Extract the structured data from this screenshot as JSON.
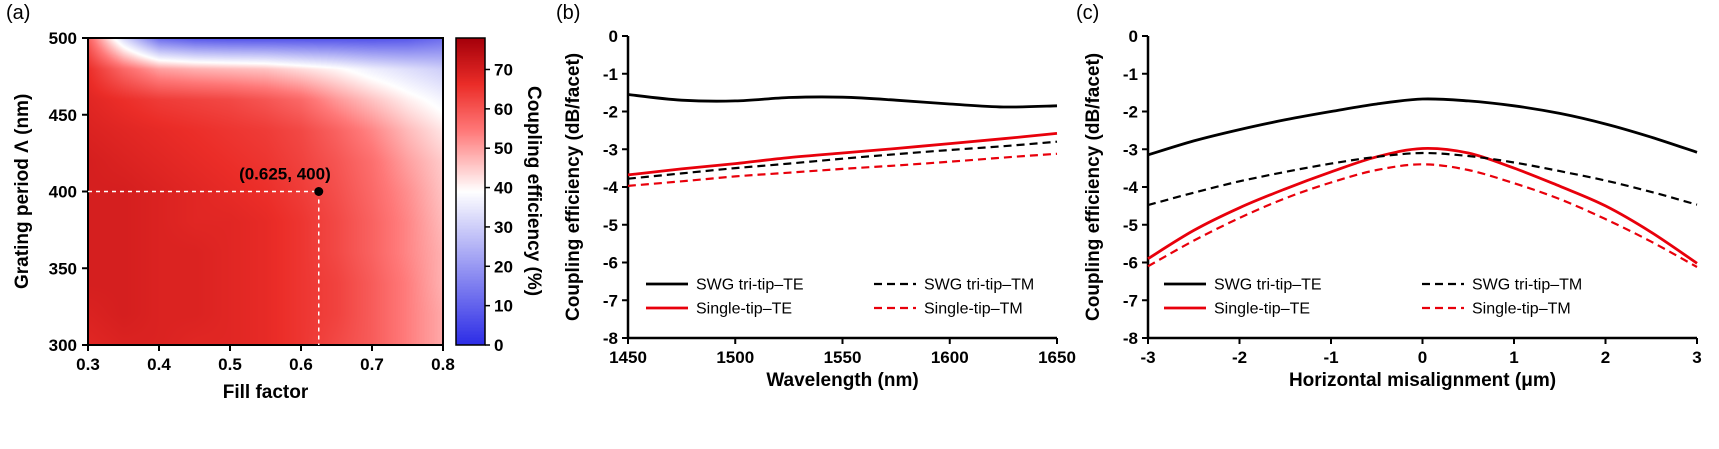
{
  "figure": {
    "panel_labels": {
      "a": "(a)",
      "b": "(b)",
      "c": "(c)"
    },
    "background": "#ffffff",
    "text_color": "#000000",
    "accent_red": "#e8000b"
  },
  "chart_data": [
    {
      "id": "a",
      "type": "heatmap",
      "xlabel": "Fill factor",
      "ylabel": "Grating period Λ (nm)",
      "colorbar_label": "Coupling efficiency (%)",
      "xlim": [
        0.3,
        0.8
      ],
      "ylim": [
        300,
        500
      ],
      "xticks": [
        0.3,
        0.4,
        0.5,
        0.6,
        0.7,
        0.8
      ],
      "yticks": [
        300,
        350,
        400,
        450,
        500
      ],
      "fill_factors": [
        0.3,
        0.35,
        0.4,
        0.45,
        0.5,
        0.55,
        0.6,
        0.65,
        0.7,
        0.75,
        0.8
      ],
      "grating_periods_top_to_bottom": [
        500,
        480,
        460,
        440,
        420,
        400,
        380,
        360,
        340,
        320,
        300
      ],
      "values_percent": [
        [
          58,
          32,
          12,
          8,
          7,
          7,
          7,
          7,
          7,
          8,
          12
        ],
        [
          66,
          57,
          50,
          48,
          47,
          46,
          43,
          40,
          36,
          33,
          30
        ],
        [
          68,
          66,
          64,
          63,
          62,
          60,
          57,
          51,
          46,
          41,
          37
        ],
        [
          69,
          68,
          67,
          66,
          65,
          64,
          62,
          58,
          53,
          47,
          42
        ],
        [
          70,
          69,
          68,
          67,
          66,
          65,
          63,
          60,
          56,
          50,
          45
        ],
        [
          70,
          70,
          69,
          68,
          67,
          66,
          64,
          61,
          57,
          52,
          46
        ],
        [
          70,
          70,
          69,
          68,
          68,
          67,
          65,
          62,
          58,
          53,
          47
        ],
        [
          70,
          70,
          69,
          69,
          68,
          67,
          65,
          62,
          58,
          53,
          48
        ],
        [
          70,
          70,
          69,
          69,
          68,
          67,
          65,
          63,
          59,
          54,
          48
        ],
        [
          69,
          70,
          69,
          69,
          68,
          67,
          65,
          63,
          59,
          54,
          49
        ],
        [
          68,
          69,
          69,
          68,
          68,
          67,
          65,
          62,
          59,
          54,
          49
        ]
      ],
      "vmin": 0,
      "vmax": 78,
      "colorbar_ticks": [
        0,
        10,
        20,
        30,
        40,
        50,
        60,
        70
      ],
      "colormap_stops": [
        {
          "t": 0.0,
          "rgb": [
            45,
            45,
            230
          ]
        },
        {
          "t": 0.5,
          "rgb": [
            255,
            255,
            255
          ]
        },
        {
          "t": 0.7,
          "rgb": [
            255,
            120,
            120
          ]
        },
        {
          "t": 0.85,
          "rgb": [
            235,
            45,
            40
          ]
        },
        {
          "t": 1.0,
          "rgb": [
            165,
            0,
            10
          ]
        }
      ],
      "marker": {
        "x": 0.625,
        "y": 400,
        "label": "(0.625, 400)",
        "dot_color": "#000000",
        "dash_color": "#ffffff"
      }
    },
    {
      "id": "b",
      "type": "line",
      "xlabel": "Wavelength (nm)",
      "ylabel": "Coupling efficiency (dB/facet)",
      "xlim": [
        1450,
        1650
      ],
      "ylim": [
        -8,
        0
      ],
      "xticks": [
        1450,
        1500,
        1550,
        1600,
        1650
      ],
      "yticks": [
        0,
        -1,
        -2,
        -3,
        -4,
        -5,
        -6,
        -7,
        -8
      ],
      "x": [
        1450,
        1475,
        1500,
        1525,
        1550,
        1575,
        1600,
        1625,
        1650
      ],
      "series": [
        {
          "name": "SWG tri-tip–TE",
          "color": "#000000",
          "style": "solid",
          "values": [
            -1.55,
            -1.7,
            -1.72,
            -1.63,
            -1.62,
            -1.7,
            -1.8,
            -1.88,
            -1.85
          ]
        },
        {
          "name": "Single-tip–TE",
          "color": "#e8000b",
          "style": "solid",
          "values": [
            -3.68,
            -3.52,
            -3.38,
            -3.22,
            -3.1,
            -2.98,
            -2.85,
            -2.72,
            -2.58
          ]
        },
        {
          "name": "SWG tri-tip–TM",
          "color": "#000000",
          "style": "dashed",
          "values": [
            -3.78,
            -3.64,
            -3.5,
            -3.38,
            -3.25,
            -3.13,
            -3.02,
            -2.92,
            -2.8
          ]
        },
        {
          "name": "Single-tip–TM",
          "color": "#e8000b",
          "style": "dashed",
          "values": [
            -3.97,
            -3.85,
            -3.72,
            -3.62,
            -3.52,
            -3.43,
            -3.33,
            -3.22,
            -3.12
          ]
        }
      ],
      "legend_columns": [
        [
          0,
          1
        ],
        [
          2,
          3
        ]
      ]
    },
    {
      "id": "c",
      "type": "line",
      "xlabel": "Horizontal misalignment (μm)",
      "ylabel": "Coupling efficiency (dB/facet)",
      "xlim": [
        -3,
        3
      ],
      "ylim": [
        -8,
        0
      ],
      "xticks": [
        -3,
        -2,
        -1,
        0,
        1,
        2,
        3
      ],
      "yticks": [
        0,
        -1,
        -2,
        -3,
        -4,
        -5,
        -6,
        -7,
        -8
      ],
      "x": [
        -3,
        -2.5,
        -2,
        -1.5,
        -1,
        -0.5,
        0,
        0.5,
        1,
        1.5,
        2,
        2.5,
        3
      ],
      "series": [
        {
          "name": "SWG tri-tip–TE",
          "color": "#000000",
          "style": "solid",
          "values": [
            -3.15,
            -2.78,
            -2.48,
            -2.22,
            -2.0,
            -1.8,
            -1.67,
            -1.72,
            -1.85,
            -2.05,
            -2.33,
            -2.68,
            -3.08
          ]
        },
        {
          "name": "Single-tip–TE",
          "color": "#e8000b",
          "style": "solid",
          "values": [
            -5.9,
            -5.15,
            -4.55,
            -4.05,
            -3.6,
            -3.2,
            -2.98,
            -3.1,
            -3.5,
            -3.98,
            -4.5,
            -5.2,
            -6.02
          ]
        },
        {
          "name": "SWG tri-tip–TM",
          "color": "#000000",
          "style": "dashed",
          "values": [
            -4.48,
            -4.15,
            -3.85,
            -3.6,
            -3.38,
            -3.2,
            -3.1,
            -3.18,
            -3.35,
            -3.58,
            -3.83,
            -4.13,
            -4.47
          ]
        },
        {
          "name": "Single-tip–TM",
          "color": "#e8000b",
          "style": "dashed",
          "values": [
            -6.1,
            -5.42,
            -4.82,
            -4.3,
            -3.88,
            -3.55,
            -3.4,
            -3.55,
            -3.9,
            -4.32,
            -4.85,
            -5.45,
            -6.12
          ]
        }
      ],
      "legend_columns": [
        [
          0,
          1
        ],
        [
          2,
          3
        ]
      ]
    }
  ]
}
